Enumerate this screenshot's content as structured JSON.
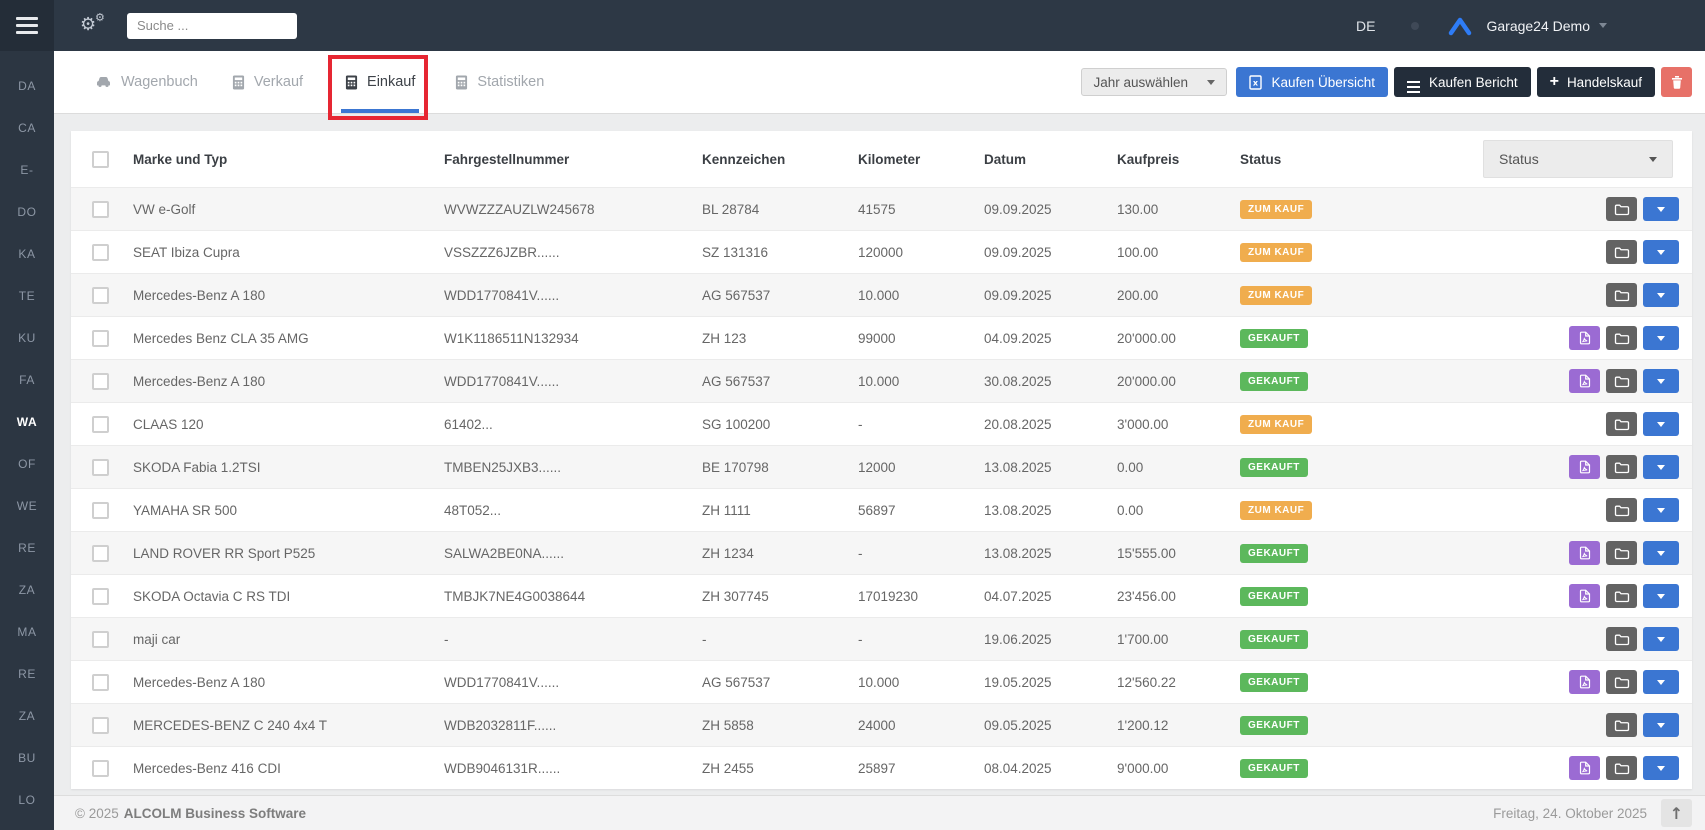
{
  "topbar": {
    "search_placeholder": "Suche ...",
    "language": "DE",
    "account_name": "Garage24 Demo"
  },
  "sidebar": {
    "items": [
      "DA",
      "CA",
      "E-",
      "DO",
      "KA",
      "TE",
      "KU",
      "FA",
      "WA",
      "OF",
      "WE",
      "RE",
      "ZA",
      "MA",
      "RE",
      "ZA",
      "BU",
      "LO"
    ],
    "active_index": 8
  },
  "tabs": [
    {
      "label": "Wagenbuch",
      "icon": "car",
      "active": false,
      "annotated": false
    },
    {
      "label": "Verkauf",
      "icon": "calculator",
      "active": false,
      "annotated": false
    },
    {
      "label": "Einkauf",
      "icon": "calculator",
      "active": true,
      "annotated": true
    },
    {
      "label": "Statistiken",
      "icon": "calculator",
      "active": false,
      "annotated": false
    }
  ],
  "annotation_color": "#e62632",
  "actions": {
    "year_select": "Jahr auswählen",
    "buy_overview": "Kaufen Übersicht",
    "buy_report": "Kaufen Bericht",
    "trade_purchase": "Handelskauf"
  },
  "table": {
    "status_filter": "Status",
    "columns": [
      "Marke und Typ",
      "Fahrgestellnummer",
      "Kennzeichen",
      "Kilometer",
      "Datum",
      "Kaufpreis",
      "Status"
    ],
    "status_colors": {
      "ZUM KAUF": "#f0ad4e",
      "GEKAUFT": "#5cb85c"
    },
    "rows": [
      {
        "make": "VW e-Golf",
        "vin": "WVWZZZAUZLW245678",
        "plate": "BL 28784",
        "km": "41575",
        "date": "09.09.2025",
        "price": "130.00",
        "status": "ZUM KAUF",
        "has_pdf": false
      },
      {
        "make": "SEAT Ibiza Cupra",
        "vin": "VSSZZZ6JZBR......",
        "plate": "SZ 131316",
        "km": "120000",
        "date": "09.09.2025",
        "price": "100.00",
        "status": "ZUM KAUF",
        "has_pdf": false
      },
      {
        "make": "Mercedes-Benz A 180",
        "vin": "WDD1770841V......",
        "plate": "AG 567537",
        "km": "10.000",
        "date": "09.09.2025",
        "price": "200.00",
        "status": "ZUM KAUF",
        "has_pdf": false
      },
      {
        "make": "Mercedes Benz CLA 35 AMG",
        "vin": "W1K1186511N132934",
        "plate": "ZH 123",
        "km": "99000",
        "date": "04.09.2025",
        "price": "20'000.00",
        "status": "GEKAUFT",
        "has_pdf": true
      },
      {
        "make": "Mercedes-Benz A 180",
        "vin": "WDD1770841V......",
        "plate": "AG 567537",
        "km": "10.000",
        "date": "30.08.2025",
        "price": "20'000.00",
        "status": "GEKAUFT",
        "has_pdf": true
      },
      {
        "make": "CLAAS 120",
        "vin": "61402...",
        "plate": "SG 100200",
        "km": "-",
        "date": "20.08.2025",
        "price": "3'000.00",
        "status": "ZUM KAUF",
        "has_pdf": false
      },
      {
        "make": "SKODA Fabia 1.2TSI",
        "vin": "TMBEN25JXB3......",
        "plate": "BE 170798",
        "km": "12000",
        "date": "13.08.2025",
        "price": "0.00",
        "status": "GEKAUFT",
        "has_pdf": true
      },
      {
        "make": "YAMAHA SR 500",
        "vin": "48T052...",
        "plate": "ZH 1111",
        "km": "56897",
        "date": "13.08.2025",
        "price": "0.00",
        "status": "ZUM KAUF",
        "has_pdf": false
      },
      {
        "make": "LAND ROVER RR Sport P525",
        "vin": "SALWA2BE0NA......",
        "plate": "ZH 1234",
        "km": "-",
        "date": "13.08.2025",
        "price": "15'555.00",
        "status": "GEKAUFT",
        "has_pdf": true
      },
      {
        "make": "SKODA Octavia C RS TDI",
        "vin": "TMBJK7NE4G0038644",
        "plate": "ZH 307745",
        "km": "17019230",
        "date": "04.07.2025",
        "price": "23'456.00",
        "status": "GEKAUFT",
        "has_pdf": true
      },
      {
        "make": "maji car",
        "vin": "-",
        "plate": "-",
        "km": "-",
        "date": "19.06.2025",
        "price": "1'700.00",
        "status": "GEKAUFT",
        "has_pdf": false
      },
      {
        "make": "Mercedes-Benz A 180",
        "vin": "WDD1770841V......",
        "plate": "AG 567537",
        "km": "10.000",
        "date": "19.05.2025",
        "price": "12'560.22",
        "status": "GEKAUFT",
        "has_pdf": true
      },
      {
        "make": "MERCEDES-BENZ C 240 4x4 T",
        "vin": "WDB2032811F......",
        "plate": "ZH 5858",
        "km": "24000",
        "date": "09.05.2025",
        "price": "1'200.12",
        "status": "GEKAUFT",
        "has_pdf": false
      },
      {
        "make": "Mercedes-Benz 416 CDI",
        "vin": "WDB9046131R......",
        "plate": "ZH 2455",
        "km": "25897",
        "date": "08.04.2025",
        "price": "9'000.00",
        "status": "GEKAUFT",
        "has_pdf": true
      }
    ]
  },
  "footer": {
    "copyright": "© 2025",
    "company": "ALCOLM Business Software",
    "date": "Freitag, 24. Oktober 2025"
  }
}
